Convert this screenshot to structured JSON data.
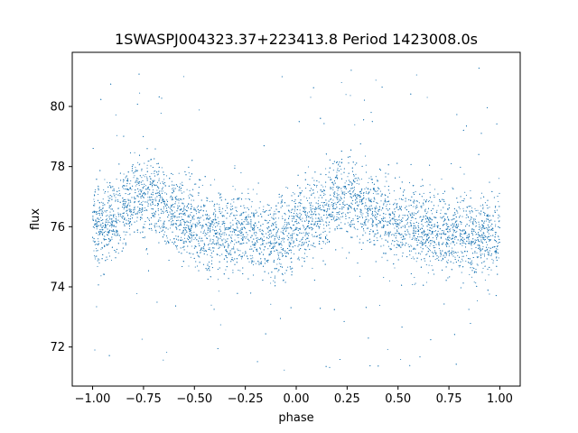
{
  "chart_data": {
    "type": "scatter",
    "title": "1SWASPJ004323.37+223413.8 Period 1423008.0s",
    "xlabel": "phase",
    "ylabel": "flux",
    "xlim": [
      -1.1,
      1.1
    ],
    "ylim": [
      70.7,
      81.8
    ],
    "xticks": [
      -1.0,
      -0.75,
      -0.5,
      -0.25,
      0.0,
      0.25,
      0.5,
      0.75,
      1.0
    ],
    "xtick_labels": [
      "−1.00",
      "−0.75",
      "−0.50",
      "−0.25",
      "0.00",
      "0.25",
      "0.50",
      "0.75",
      "1.00"
    ],
    "yticks": [
      72,
      74,
      76,
      78,
      80
    ],
    "ytick_labels": [
      "72",
      "74",
      "76",
      "78",
      "80"
    ],
    "grid": false,
    "marker_color": "#1f77b4",
    "series": [
      {
        "x_range": [
          -1.0,
          1.0
        ],
        "description_points": [
          {
            "x": -1.0,
            "y": 75.9
          },
          {
            "x": -0.9,
            "y": 76.2
          },
          {
            "x": -0.8,
            "y": 77.0
          },
          {
            "x": -0.7,
            "y": 77.0
          },
          {
            "x": -0.6,
            "y": 76.5
          },
          {
            "x": -0.5,
            "y": 76.0
          },
          {
            "x": -0.4,
            "y": 75.8
          },
          {
            "x": -0.3,
            "y": 75.8
          },
          {
            "x": -0.2,
            "y": 75.7
          },
          {
            "x": -0.1,
            "y": 75.6
          },
          {
            "x": 0.0,
            "y": 75.8
          },
          {
            "x": 0.1,
            "y": 76.3
          },
          {
            "x": 0.2,
            "y": 77.0
          },
          {
            "x": 0.3,
            "y": 77.0
          },
          {
            "x": 0.4,
            "y": 76.5
          },
          {
            "x": 0.5,
            "y": 76.0
          },
          {
            "x": 0.6,
            "y": 75.9
          },
          {
            "x": 0.7,
            "y": 75.8
          },
          {
            "x": 0.8,
            "y": 75.7
          },
          {
            "x": 0.9,
            "y": 75.6
          },
          {
            "x": 1.0,
            "y": 75.8
          }
        ]
      }
    ]
  }
}
